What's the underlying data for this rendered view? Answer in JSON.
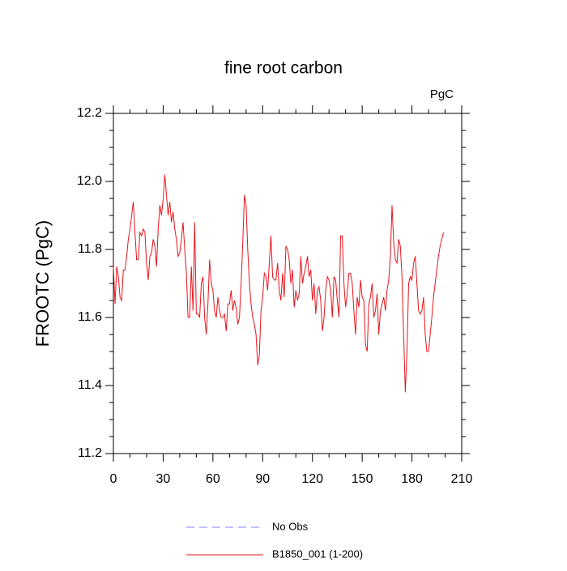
{
  "chart_data": {
    "type": "line",
    "title": "fine root carbon",
    "units": "PgC",
    "y_label": "FROOTC  (PgC)",
    "x": [
      0,
      1,
      2,
      3,
      4,
      5,
      6,
      7,
      8,
      9,
      10,
      11,
      12,
      13,
      14,
      15,
      16,
      17,
      18,
      19,
      20,
      21,
      22,
      23,
      24,
      25,
      26,
      27,
      28,
      29,
      30,
      31,
      32,
      33,
      34,
      35,
      36,
      37,
      38,
      39,
      40,
      41,
      42,
      43,
      44,
      45,
      46,
      47,
      48,
      49,
      50,
      51,
      52,
      53,
      54,
      55,
      56,
      57,
      58,
      59,
      60,
      61,
      62,
      63,
      64,
      65,
      66,
      67,
      68,
      69,
      70,
      71,
      72,
      73,
      74,
      75,
      76,
      77,
      78,
      79,
      80,
      81,
      82,
      83,
      84,
      85,
      86,
      87,
      88,
      89,
      90,
      91,
      92,
      93,
      94,
      95,
      96,
      97,
      98,
      99,
      100,
      101,
      102,
      103,
      104,
      105,
      106,
      107,
      108,
      109,
      110,
      111,
      112,
      113,
      114,
      115,
      116,
      117,
      118,
      119,
      120,
      121,
      122,
      123,
      124,
      125,
      126,
      127,
      128,
      129,
      130,
      131,
      132,
      133,
      134,
      135,
      136,
      137,
      138,
      139,
      140,
      141,
      142,
      143,
      144,
      145,
      146,
      147,
      148,
      149,
      150,
      151,
      152,
      153,
      154,
      155,
      156,
      157,
      158,
      159,
      160,
      161,
      162,
      163,
      164,
      165,
      166,
      167,
      168,
      169,
      170,
      171,
      172,
      173,
      174,
      175,
      176,
      177,
      178,
      179,
      180,
      181,
      182,
      183,
      184,
      185,
      186,
      187,
      188,
      189,
      190,
      191,
      192,
      193,
      194,
      195,
      196,
      197,
      198,
      199
    ],
    "series": [
      {
        "name": "No Obs",
        "color": "#8080ff",
        "dashed": true,
        "values": [
          null,
          null,
          null,
          null,
          null,
          null,
          null,
          null,
          null,
          null,
          null,
          null,
          null,
          null,
          null,
          null,
          null,
          null,
          null,
          null,
          null,
          null,
          null,
          null,
          null,
          null,
          null,
          null,
          null,
          null,
          null,
          null,
          null,
          null,
          null,
          null,
          null,
          null,
          null,
          null,
          null,
          null,
          null,
          null,
          null,
          null,
          null,
          null,
          null,
          null,
          null,
          null,
          null,
          null,
          null,
          null,
          null,
          null,
          null,
          null,
          null,
          null,
          null,
          null,
          null,
          null,
          null,
          null,
          null,
          null,
          null,
          null,
          null,
          null,
          null,
          null,
          null,
          null,
          null,
          null,
          null,
          null,
          null,
          null,
          null,
          null,
          null,
          null,
          null,
          null,
          null,
          null,
          null,
          null,
          null,
          null,
          null,
          null,
          null,
          null,
          null,
          null,
          null,
          null,
          null,
          null,
          null,
          null,
          null,
          null,
          null,
          null,
          null,
          null,
          null,
          null,
          null,
          null,
          null,
          null,
          null,
          null,
          null,
          null,
          null,
          null,
          null,
          null,
          null,
          null,
          null,
          null,
          null,
          null,
          null,
          null,
          null,
          null,
          null,
          null,
          null,
          null,
          null,
          null,
          null,
          null,
          null,
          null,
          null,
          null,
          null,
          null,
          null,
          null,
          null,
          null,
          null,
          null,
          null,
          null,
          null,
          null,
          null,
          null,
          null,
          null,
          null,
          null,
          null,
          null,
          null,
          null,
          null,
          null,
          null,
          null,
          null,
          null,
          null,
          null,
          null,
          null,
          null,
          null,
          null,
          null,
          null,
          null,
          null,
          null,
          null,
          null,
          null,
          null,
          null,
          null,
          null,
          null,
          null,
          null
        ]
      },
      {
        "name": "B1850_001 (1-200)",
        "color": "#e8141c",
        "dashed": false,
        "values": [
          11.75,
          11.64,
          11.75,
          11.72,
          11.66,
          11.65,
          11.74,
          11.74,
          11.78,
          11.83,
          11.86,
          11.9,
          11.94,
          11.85,
          11.77,
          11.77,
          11.85,
          11.84,
          11.86,
          11.85,
          11.76,
          11.71,
          11.78,
          11.79,
          11.83,
          11.81,
          11.75,
          11.86,
          11.93,
          11.9,
          11.95,
          12.02,
          11.96,
          11.9,
          11.94,
          11.88,
          11.91,
          11.86,
          11.83,
          11.78,
          11.79,
          11.83,
          11.88,
          11.8,
          11.73,
          11.6,
          11.6,
          11.75,
          11.62,
          11.88,
          11.61,
          11.61,
          11.6,
          11.7,
          11.72,
          11.6,
          11.55,
          11.64,
          11.77,
          11.7,
          11.68,
          11.62,
          11.6,
          11.66,
          11.62,
          11.6,
          11.6,
          11.61,
          11.56,
          11.64,
          11.64,
          11.68,
          11.62,
          11.65,
          11.63,
          11.58,
          11.6,
          11.7,
          11.82,
          11.96,
          11.93,
          11.8,
          11.7,
          11.64,
          11.6,
          11.58,
          11.55,
          11.46,
          11.49,
          11.62,
          11.66,
          11.73,
          11.72,
          11.68,
          11.76,
          11.84,
          11.72,
          11.71,
          11.71,
          11.76,
          11.68,
          11.65,
          11.73,
          11.66,
          11.81,
          11.8,
          11.77,
          11.7,
          11.74,
          11.63,
          11.68,
          11.65,
          11.67,
          11.78,
          11.7,
          11.73,
          11.75,
          11.78,
          11.72,
          11.74,
          11.65,
          11.7,
          11.61,
          11.68,
          11.69,
          11.65,
          11.56,
          11.6,
          11.68,
          11.72,
          11.71,
          11.68,
          11.6,
          11.72,
          11.71,
          11.65,
          11.6,
          11.84,
          11.84,
          11.7,
          11.63,
          11.67,
          11.73,
          11.73,
          11.7,
          11.62,
          11.55,
          11.66,
          11.63,
          11.71,
          11.66,
          11.65,
          11.52,
          11.5,
          11.64,
          11.66,
          11.7,
          11.6,
          11.62,
          11.67,
          11.55,
          11.62,
          11.64,
          11.66,
          11.62,
          11.68,
          11.71,
          11.78,
          11.93,
          11.82,
          11.77,
          11.76,
          11.83,
          11.81,
          11.72,
          11.55,
          11.38,
          11.5,
          11.7,
          11.72,
          11.71,
          11.76,
          11.78,
          11.7,
          11.62,
          11.61,
          11.62,
          11.66,
          11.55,
          11.5,
          11.5,
          11.55,
          11.6,
          11.66,
          11.7,
          11.74,
          11.78,
          11.81,
          11.83,
          11.85
        ]
      }
    ],
    "xlim": [
      0,
      210
    ],
    "xticks": [
      0,
      30,
      60,
      90,
      120,
      150,
      180,
      210
    ],
    "xminorticks": [
      10,
      20,
      40,
      50,
      70,
      80,
      100,
      110,
      130,
      140,
      160,
      170,
      190,
      200
    ],
    "ylim": [
      11.2,
      12.2
    ],
    "yticks": [
      11.2,
      11.4,
      11.6,
      11.8,
      {
        "value": 12,
        "label": "12.0"
      },
      12.2
    ],
    "yminorticks": [
      11.25,
      11.3,
      11.35,
      11.45,
      11.5,
      11.55,
      11.65,
      11.7,
      11.75,
      11.85,
      11.9,
      11.95,
      12.05,
      12.1,
      12.15
    ]
  }
}
